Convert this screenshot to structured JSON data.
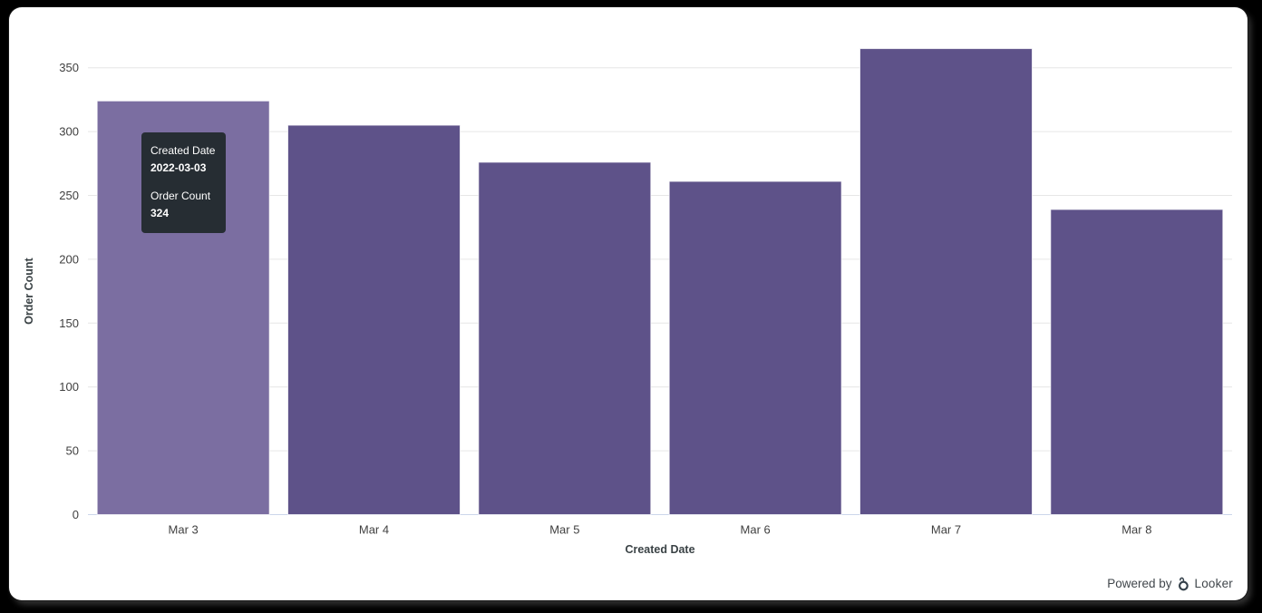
{
  "chart_data": {
    "type": "bar",
    "title": "",
    "categories": [
      "Mar 3",
      "Mar 4",
      "Mar 5",
      "Mar 6",
      "Mar 7",
      "Mar 8"
    ],
    "series": [
      {
        "name": "Order Count",
        "values": [
          324,
          305,
          276,
          261,
          365,
          239
        ]
      }
    ],
    "xlabel": "Created Date",
    "ylabel": "Order Count",
    "ylim": [
      0,
      350
    ],
    "yticks": [
      0,
      50,
      100,
      150,
      200,
      250,
      300,
      350
    ],
    "grid": true,
    "legend": "none",
    "hovered_index": 0,
    "colors": {
      "bar": "#5e5289",
      "bar_hover": "#7b6ea1",
      "bar_border": "#ffffff",
      "gridline": "#e6e6e6",
      "axis_line": "#ccd6eb",
      "tick_label": "#404040",
      "axis_title": "#3a4245"
    }
  },
  "tooltip": {
    "x_label": "Created Date",
    "x_value": "2022-03-03",
    "y_label": "Order Count",
    "y_value": "324",
    "bg": "#262d33",
    "text_color": "#ffffff"
  },
  "footer": {
    "powered_by": "Powered by",
    "brand": "Looker",
    "logo_icon": "looker-logo-icon",
    "logo_color": "#34404a"
  }
}
